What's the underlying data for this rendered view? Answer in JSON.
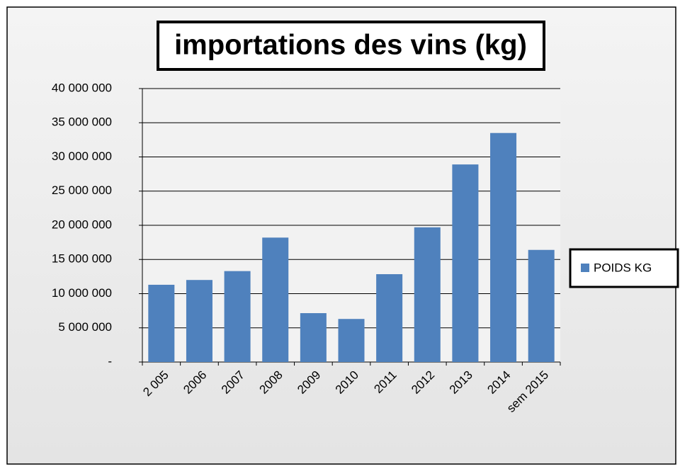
{
  "chart_data": {
    "type": "bar",
    "title": "importations des vins (kg)",
    "categories": [
      "2 005",
      "2006",
      "2007",
      "2008",
      "2009",
      "2010",
      "2011",
      "2012",
      "2013",
      "2014",
      "sem 2015"
    ],
    "series": [
      {
        "name": "POIDS KG",
        "color": "#4f81bd",
        "values": [
          11300000,
          12000000,
          13300000,
          18200000,
          7150000,
          6300000,
          12850000,
          19700000,
          28900000,
          33500000,
          16400000
        ]
      }
    ],
    "ylim": [
      0,
      40000000
    ],
    "yticks": [
      {
        "value": 0,
        "label": "-"
      },
      {
        "value": 5000000,
        "label": "5 000 000"
      },
      {
        "value": 10000000,
        "label": "10 000 000"
      },
      {
        "value": 15000000,
        "label": "15 000 000"
      },
      {
        "value": 20000000,
        "label": "20 000 000"
      },
      {
        "value": 25000000,
        "label": "25 000 000"
      },
      {
        "value": 30000000,
        "label": "30 000 000"
      },
      {
        "value": 35000000,
        "label": "35 000 000"
      },
      {
        "value": 40000000,
        "label": "40 000 000"
      }
    ],
    "grid": true,
    "legend": "right"
  }
}
